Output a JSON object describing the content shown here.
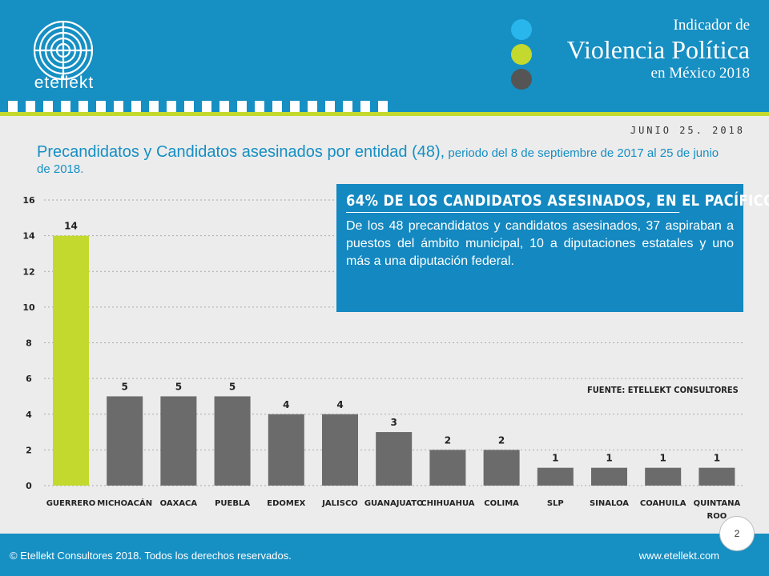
{
  "brand": {
    "name": "etellekt"
  },
  "header": {
    "title_line1": "Indicador de",
    "title_line2": "Violencia Política",
    "title_line3": "en México 2018",
    "dot_colors": [
      "#29b6ec",
      "#c3d92e",
      "#555555"
    ]
  },
  "date": "JUNIO 25. 2018",
  "subtitle": {
    "main": "Precandidatos y Candidatos asesinados por entidad (48),",
    "detail": " periodo del 8 de septiembre de 2017 al 25 de junio de 2018."
  },
  "infobox": {
    "title": "64% DE LOS CANDIDATOS ASESINADOS, EN EL PACÍFICO.",
    "body": "De los 48 precandidatos y candidatos asesinados, 37 aspiraban a puestos del ámbito municipal, 10 a diputaciones estatales y uno más a una diputación federal."
  },
  "source": "FUENTE: ETELLEKT CONSULTORES",
  "chart_data": {
    "type": "bar",
    "categories": [
      "GUERRERO",
      "MICHOACÁN",
      "OAXACA",
      "PUEBLA",
      "EDOMEX",
      "JALISCO",
      "GUANAJUATO",
      "CHIHUAHUA",
      "COLIMA",
      "SLP",
      "SINALOA",
      "COAHUILA",
      "QUINTANA ROO"
    ],
    "values": [
      14,
      5,
      5,
      5,
      4,
      4,
      3,
      2,
      2,
      1,
      1,
      1,
      1
    ],
    "ylim": [
      0,
      16
    ],
    "yticks": [
      0,
      2,
      4,
      6,
      8,
      10,
      12,
      14,
      16
    ],
    "grid": true,
    "colors": {
      "highlight": "#c3d92e",
      "default": "#6b6b6b"
    }
  },
  "footer": {
    "copyright": "© Etellekt Consultores 2018. Todos los derechos reservados.",
    "website": "www.etellekt.com",
    "page": "2"
  }
}
